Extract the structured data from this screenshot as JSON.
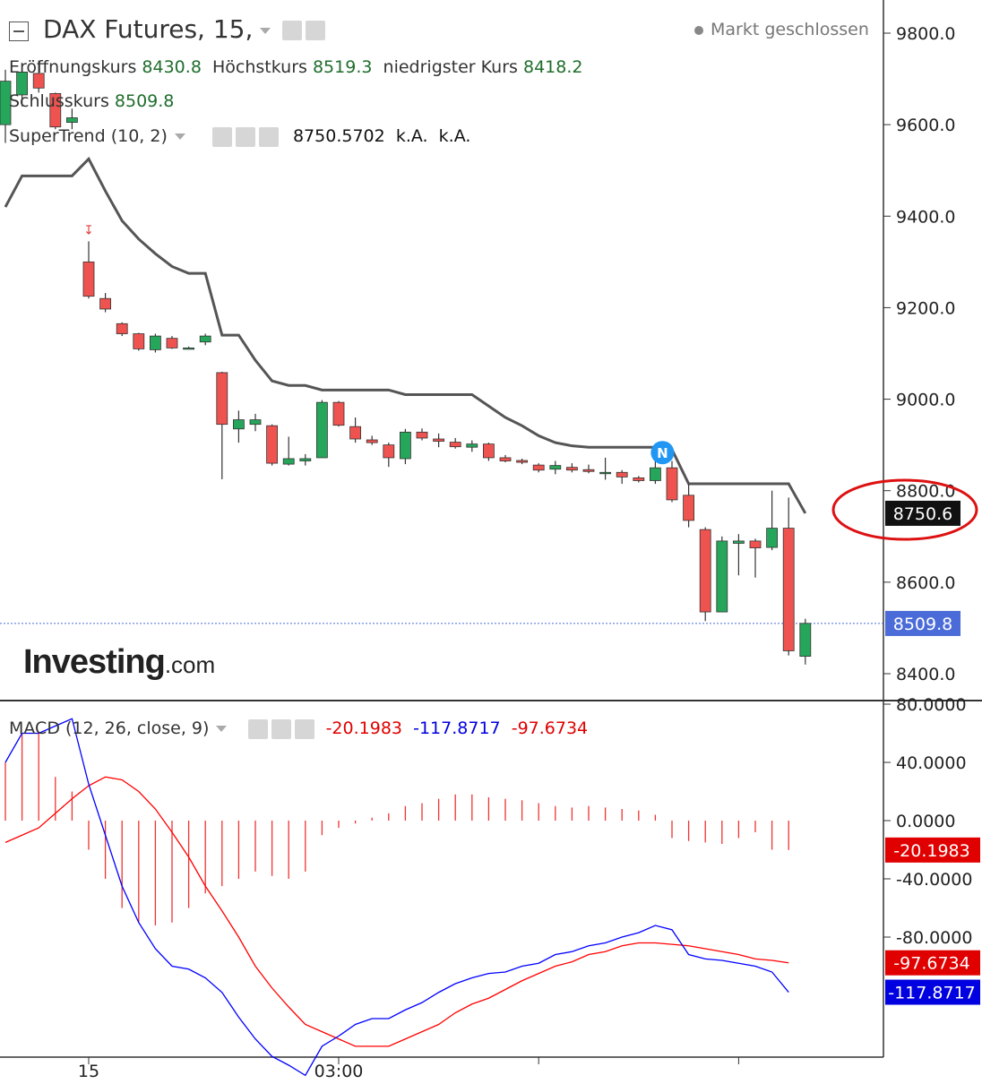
{
  "header": {
    "title": "DAX Futures, 15,",
    "status": "Markt geschlossen",
    "open_label": "Eröffnungskurs",
    "open_value": "8430.8",
    "high_label": "Höchstkurs",
    "high_value": "8519.3",
    "low_label": "niedrigster Kurs",
    "low_value": "8418.2",
    "close_label": "Schlusskurs",
    "close_value": "8509.8"
  },
  "supertrend_legend": {
    "label": "SuperTrend (10, 2)",
    "value": "8750.5702",
    "v2": "k.A.",
    "v3": "k.A."
  },
  "macd_legend": {
    "label": "MACD (12, 26, close, 9)",
    "hist": "-20.1983",
    "macd": "-117.8717",
    "signal": "-97.6734"
  },
  "logo": {
    "main": "Investing",
    "suffix": ".com"
  },
  "colors": {
    "up": "#26a65b",
    "down": "#ef5350",
    "supertrend": "#555555",
    "macd": "#0000ff",
    "signal": "#ff0000",
    "annotation": "#dd1111"
  },
  "chart_data": [
    {
      "type": "candlestick",
      "ylim": [
        8330,
        9860
      ],
      "yticks": [
        "9800.0",
        "9600.0",
        "9400.0",
        "9200.0",
        "9000.0",
        "8800.0",
        "8600.0",
        "8400.0"
      ],
      "ytick_values": [
        9800,
        9600,
        9400,
        9200,
        9000,
        8800,
        8600,
        8400
      ],
      "xticks": [
        {
          "label": "15",
          "index": 5
        },
        {
          "label": "03:00",
          "index": 20
        },
        {
          "label": "",
          "index": 32
        },
        {
          "label": "",
          "index": 44
        }
      ],
      "last_price_label": "8509.8",
      "last_price": 8509.8,
      "supertrend_label": "8750.6",
      "supertrend_last": 8750.6,
      "marker_N": {
        "index": 39,
        "label": "N"
      },
      "candles": [
        {
          "o": 9600,
          "h": 9720,
          "l": 9560,
          "c": 9695
        },
        {
          "o": 9665,
          "h": 9735,
          "l": 9640,
          "c": 9715
        },
        {
          "o": 9712,
          "h": 9740,
          "l": 9670,
          "c": 9680
        },
        {
          "o": 9668,
          "h": 9670,
          "l": 9590,
          "c": 9595
        },
        {
          "o": 9605,
          "h": 9635,
          "l": 9590,
          "c": 9615
        },
        {
          "o": 9300,
          "h": 9345,
          "l": 9220,
          "c": 9225
        },
        {
          "o": 9220,
          "h": 9232,
          "l": 9190,
          "c": 9197
        },
        {
          "o": 9165,
          "h": 9168,
          "l": 9138,
          "c": 9143
        },
        {
          "o": 9143,
          "h": 9145,
          "l": 9106,
          "c": 9110
        },
        {
          "o": 9108,
          "h": 9143,
          "l": 9102,
          "c": 9138
        },
        {
          "o": 9133,
          "h": 9138,
          "l": 9110,
          "c": 9112
        },
        {
          "o": 9112,
          "h": 9115,
          "l": 9110,
          "c": 9112
        },
        {
          "o": 9125,
          "h": 9143,
          "l": 9118,
          "c": 9138
        },
        {
          "o": 9058,
          "h": 9060,
          "l": 8825,
          "c": 8945
        },
        {
          "o": 8935,
          "h": 8975,
          "l": 8905,
          "c": 8955
        },
        {
          "o": 8945,
          "h": 8968,
          "l": 8930,
          "c": 8955
        },
        {
          "o": 8942,
          "h": 8945,
          "l": 8855,
          "c": 8860
        },
        {
          "o": 8858,
          "h": 8918,
          "l": 8855,
          "c": 8870
        },
        {
          "o": 8865,
          "h": 8880,
          "l": 8855,
          "c": 8870
        },
        {
          "o": 8872,
          "h": 8998,
          "l": 8872,
          "c": 8993
        },
        {
          "o": 8993,
          "h": 8996,
          "l": 8940,
          "c": 8943
        },
        {
          "o": 8940,
          "h": 8960,
          "l": 8905,
          "c": 8913
        },
        {
          "o": 8911,
          "h": 8920,
          "l": 8900,
          "c": 8905
        },
        {
          "o": 8900,
          "h": 8905,
          "l": 8852,
          "c": 8872
        },
        {
          "o": 8870,
          "h": 8935,
          "l": 8858,
          "c": 8928
        },
        {
          "o": 8928,
          "h": 8936,
          "l": 8910,
          "c": 8915
        },
        {
          "o": 8913,
          "h": 8925,
          "l": 8895,
          "c": 8908
        },
        {
          "o": 8906,
          "h": 8915,
          "l": 8892,
          "c": 8896
        },
        {
          "o": 8895,
          "h": 8910,
          "l": 8885,
          "c": 8902
        },
        {
          "o": 8902,
          "h": 8905,
          "l": 8865,
          "c": 8872
        },
        {
          "o": 8872,
          "h": 8878,
          "l": 8862,
          "c": 8865
        },
        {
          "o": 8866,
          "h": 8870,
          "l": 8858,
          "c": 8862
        },
        {
          "o": 8856,
          "h": 8860,
          "l": 8840,
          "c": 8845
        },
        {
          "o": 8847,
          "h": 8865,
          "l": 8836,
          "c": 8855
        },
        {
          "o": 8851,
          "h": 8860,
          "l": 8840,
          "c": 8845
        },
        {
          "o": 8846,
          "h": 8857,
          "l": 8838,
          "c": 8842
        },
        {
          "o": 8838,
          "h": 8872,
          "l": 8824,
          "c": 8840
        },
        {
          "o": 8840,
          "h": 8845,
          "l": 8815,
          "c": 8830
        },
        {
          "o": 8828,
          "h": 8832,
          "l": 8818,
          "c": 8822
        },
        {
          "o": 8822,
          "h": 8890,
          "l": 8815,
          "c": 8850
        },
        {
          "o": 8850,
          "h": 8865,
          "l": 8775,
          "c": 8780
        },
        {
          "o": 8790,
          "h": 8815,
          "l": 8720,
          "c": 8735
        },
        {
          "o": 8715,
          "h": 8720,
          "l": 8515,
          "c": 8535
        },
        {
          "o": 8535,
          "h": 8700,
          "l": 8535,
          "c": 8690
        },
        {
          "o": 8685,
          "h": 8705,
          "l": 8615,
          "c": 8690
        },
        {
          "o": 8690,
          "h": 8695,
          "l": 8610,
          "c": 8675
        },
        {
          "o": 8676,
          "h": 8800,
          "l": 8670,
          "c": 8718
        },
        {
          "o": 8718,
          "h": 8785,
          "l": 8440,
          "c": 8450
        },
        {
          "o": 8438,
          "h": 8520,
          "l": 8420,
          "c": 8510
        }
      ],
      "supertrend": [
        9420,
        9488,
        9488,
        9488,
        9488,
        9525,
        9455,
        9390,
        9350,
        9318,
        9290,
        9275,
        9275,
        9140,
        9140,
        9085,
        9040,
        9030,
        9030,
        9020,
        9020,
        9020,
        9020,
        9020,
        9010,
        9010,
        9010,
        9010,
        9010,
        8985,
        8960,
        8942,
        8920,
        8905,
        8898,
        8895,
        8895,
        8895,
        8895,
        8895,
        8890,
        8815,
        8815,
        8815,
        8815,
        8815,
        8815,
        8815,
        8750.6
      ],
      "arrow_index": 5
    },
    {
      "type": "line+bar",
      "title": "MACD (12, 26, close, 9)",
      "ylim": [
        -185,
        84
      ],
      "yticks": [
        "80.0000",
        "40.0000",
        "0.0000",
        "-40.0000",
        "-80.0000"
      ],
      "ytick_values": [
        80,
        40,
        0,
        -40,
        -80
      ],
      "series": [
        {
          "name": "MACD",
          "values": [
            40,
            60,
            60,
            65,
            70,
            25,
            -10,
            -45,
            -70,
            -88,
            -100,
            -102,
            -108,
            -118,
            -135,
            -150,
            -162,
            -168,
            -175,
            -155,
            -148,
            -140,
            -136,
            -136,
            -130,
            -125,
            -118,
            -112,
            -108,
            -105,
            -104,
            -100,
            -98,
            -92,
            -90,
            -86,
            -84,
            -80,
            -77,
            -72,
            -75,
            -92,
            -95,
            -96,
            -98,
            -100,
            -104,
            -117.8717
          ]
        },
        {
          "name": "Signal",
          "values": [
            -15,
            -10,
            -5,
            5,
            15,
            24,
            30,
            28,
            20,
            8,
            -8,
            -25,
            -45,
            -62,
            -80,
            -100,
            -115,
            -128,
            -140,
            -145,
            -150,
            -155,
            -155,
            -155,
            -150,
            -145,
            -140,
            -132,
            -126,
            -122,
            -116,
            -110,
            -105,
            -100,
            -97,
            -92,
            -90,
            -86,
            -84,
            -84,
            -85,
            -86,
            -88,
            -90,
            -92,
            -95,
            -96,
            -97.6734
          ]
        },
        {
          "name": "Histogram",
          "values": [
            40,
            60,
            60,
            30,
            20,
            -20,
            -40,
            -60,
            -70,
            -72,
            -70,
            -60,
            -50,
            -45,
            -40,
            -35,
            -38,
            -40,
            -35,
            -10,
            -5,
            -2,
            2,
            5,
            10,
            12,
            15,
            18,
            18,
            16,
            15,
            14,
            12,
            10,
            9,
            10,
            9,
            8,
            7,
            4,
            -12,
            -14,
            -15,
            -16,
            -12,
            -8,
            -20,
            -20.1983
          ]
        }
      ],
      "labels": {
        "hist": "-20.1983",
        "signal": "-97.6734",
        "macd": "-117.8717"
      }
    }
  ]
}
